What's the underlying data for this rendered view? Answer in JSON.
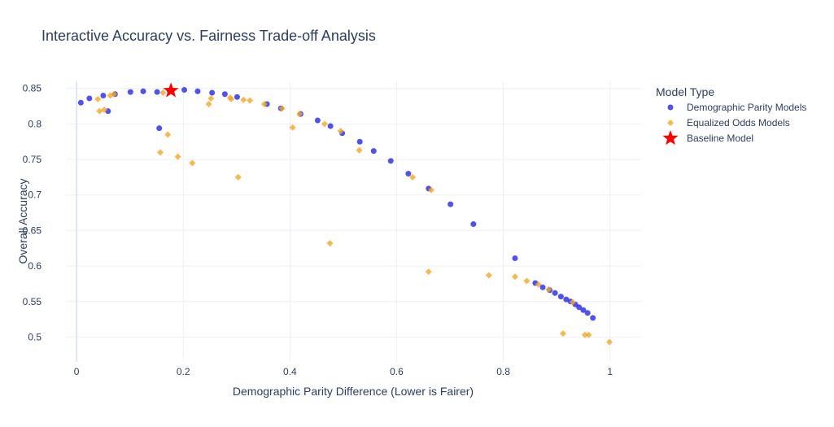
{
  "chart_data": {
    "type": "scatter",
    "title": "Interactive Accuracy vs. Fairness Trade-off Analysis",
    "xlabel": "Demographic Parity Difference (Lower is Fairer)",
    "ylabel": "Overall Accuracy",
    "xlim": [
      -0.02,
      1.06
    ],
    "ylim": [
      0.465,
      0.86
    ],
    "x_ticks": [
      0,
      0.2,
      0.4,
      0.6,
      0.8,
      1
    ],
    "x_tick_labels": [
      "0",
      "0.2",
      "0.4",
      "0.6",
      "0.8",
      "1"
    ],
    "y_ticks": [
      0.5,
      0.55,
      0.6,
      0.65,
      0.7,
      0.75,
      0.8,
      0.85
    ],
    "y_tick_labels": [
      "0.5",
      "0.55",
      "0.6",
      "0.65",
      "0.7",
      "0.75",
      "0.8",
      "0.85"
    ],
    "grid": true,
    "legend": {
      "title": "Model Type",
      "placement": "top-right"
    },
    "series": [
      {
        "name": "Demographic Parity Models",
        "marker": "circle",
        "color": "#3333ee",
        "points": [
          [
            0.008,
            0.83
          ],
          [
            0.024,
            0.836
          ],
          [
            0.05,
            0.84
          ],
          [
            0.059,
            0.818
          ],
          [
            0.072,
            0.842
          ],
          [
            0.101,
            0.845
          ],
          [
            0.125,
            0.846
          ],
          [
            0.151,
            0.845
          ],
          [
            0.155,
            0.794
          ],
          [
            0.174,
            0.847
          ],
          [
            0.202,
            0.848
          ],
          [
            0.227,
            0.846
          ],
          [
            0.254,
            0.844
          ],
          [
            0.278,
            0.842
          ],
          [
            0.301,
            0.838
          ],
          [
            0.357,
            0.828
          ],
          [
            0.383,
            0.822
          ],
          [
            0.42,
            0.814
          ],
          [
            0.452,
            0.805
          ],
          [
            0.476,
            0.797
          ],
          [
            0.498,
            0.787
          ],
          [
            0.531,
            0.775
          ],
          [
            0.557,
            0.762
          ],
          [
            0.589,
            0.748
          ],
          [
            0.622,
            0.73
          ],
          [
            0.66,
            0.709
          ],
          [
            0.701,
            0.687
          ],
          [
            0.744,
            0.659
          ],
          [
            0.822,
            0.611
          ],
          [
            0.874,
            0.57
          ],
          [
            0.887,
            0.566
          ],
          [
            0.897,
            0.562
          ],
          [
            0.908,
            0.557
          ],
          [
            0.918,
            0.553
          ],
          [
            0.926,
            0.55
          ],
          [
            0.935,
            0.546
          ],
          [
            0.942,
            0.542
          ],
          [
            0.95,
            0.538
          ],
          [
            0.958,
            0.534
          ],
          [
            0.968,
            0.527
          ],
          [
            0.86,
            0.576
          ]
        ]
      },
      {
        "name": "Equalized Odds Models",
        "marker": "diamond",
        "color": "#f5a623",
        "points": [
          [
            0.04,
            0.835
          ],
          [
            0.043,
            0.818
          ],
          [
            0.052,
            0.82
          ],
          [
            0.063,
            0.84
          ],
          [
            0.07,
            0.842
          ],
          [
            0.157,
            0.76
          ],
          [
            0.162,
            0.844
          ],
          [
            0.171,
            0.785
          ],
          [
            0.19,
            0.754
          ],
          [
            0.217,
            0.745
          ],
          [
            0.248,
            0.828
          ],
          [
            0.252,
            0.836
          ],
          [
            0.288,
            0.837
          ],
          [
            0.29,
            0.835
          ],
          [
            0.303,
            0.725
          ],
          [
            0.313,
            0.834
          ],
          [
            0.325,
            0.833
          ],
          [
            0.352,
            0.828
          ],
          [
            0.385,
            0.822
          ],
          [
            0.405,
            0.795
          ],
          [
            0.418,
            0.814
          ],
          [
            0.465,
            0.8
          ],
          [
            0.475,
            0.632
          ],
          [
            0.495,
            0.79
          ],
          [
            0.53,
            0.763
          ],
          [
            0.63,
            0.725
          ],
          [
            0.66,
            0.592
          ],
          [
            0.665,
            0.707
          ],
          [
            0.773,
            0.587
          ],
          [
            0.822,
            0.585
          ],
          [
            0.844,
            0.579
          ],
          [
            0.866,
            0.574
          ],
          [
            0.885,
            0.567
          ],
          [
            0.912,
            0.505
          ],
          [
            0.93,
            0.549
          ],
          [
            0.953,
            0.503
          ],
          [
            0.96,
            0.503
          ],
          [
            0.999,
            0.493
          ]
        ]
      },
      {
        "name": "Baseline Model",
        "marker": "star",
        "color": "#ff0000",
        "points": [
          [
            0.177,
            0.847
          ]
        ]
      }
    ]
  }
}
